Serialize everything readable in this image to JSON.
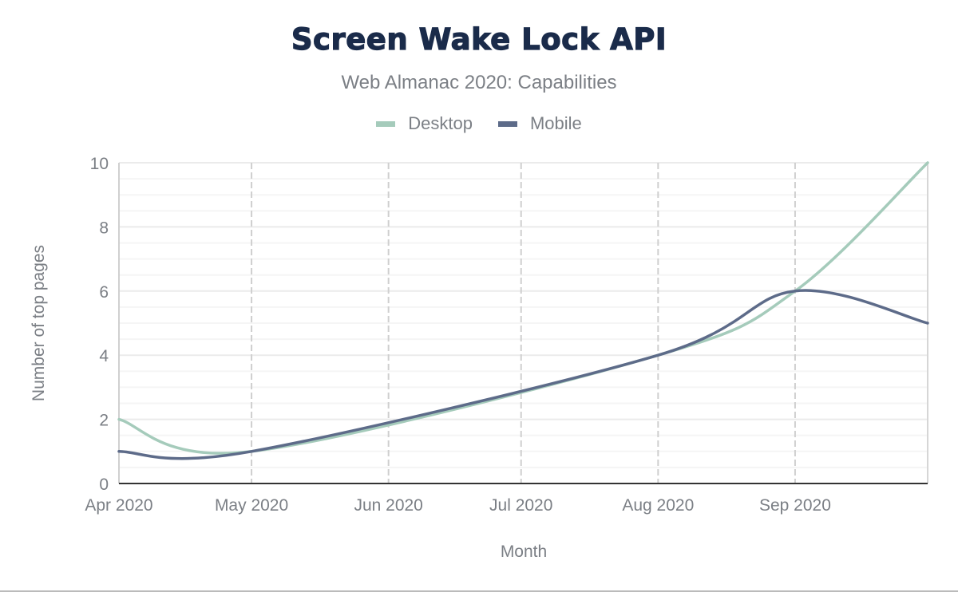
{
  "chart_data": {
    "type": "line",
    "title": "Screen Wake Lock API",
    "subtitle": "Web Almanac 2020: Capabilities",
    "xlabel": "Month",
    "ylabel": "Number of top pages",
    "ylim": [
      0,
      10
    ],
    "yticks": [
      0,
      2,
      4,
      6,
      8,
      10
    ],
    "xticks": [
      {
        "date": "2020-04-01",
        "label": "Apr 2020"
      },
      {
        "date": "2020-05-01",
        "label": "May 2020"
      },
      {
        "date": "2020-06-01",
        "label": "Jun 2020"
      },
      {
        "date": "2020-07-01",
        "label": "Jul 2020"
      },
      {
        "date": "2020-08-01",
        "label": "Aug 2020"
      },
      {
        "date": "2020-09-01",
        "label": "Sep 2020"
      }
    ],
    "xlim": [
      "2020-04-01",
      "2020-10-01"
    ],
    "grid": true,
    "legend_placement": "top-center",
    "series": [
      {
        "name": "Desktop",
        "color": "#a5cbbb",
        "x": [
          "2020-04-01",
          "2020-05-01",
          "2020-08-01",
          "2020-09-01",
          "2020-10-01"
        ],
        "values": [
          2,
          1,
          4,
          6,
          10
        ]
      },
      {
        "name": "Mobile",
        "color": "#5d6b89",
        "x": [
          "2020-04-01",
          "2020-05-01",
          "2020-08-01",
          "2020-09-01",
          "2020-10-01"
        ],
        "values": [
          1,
          1,
          4,
          6,
          5
        ]
      }
    ]
  }
}
